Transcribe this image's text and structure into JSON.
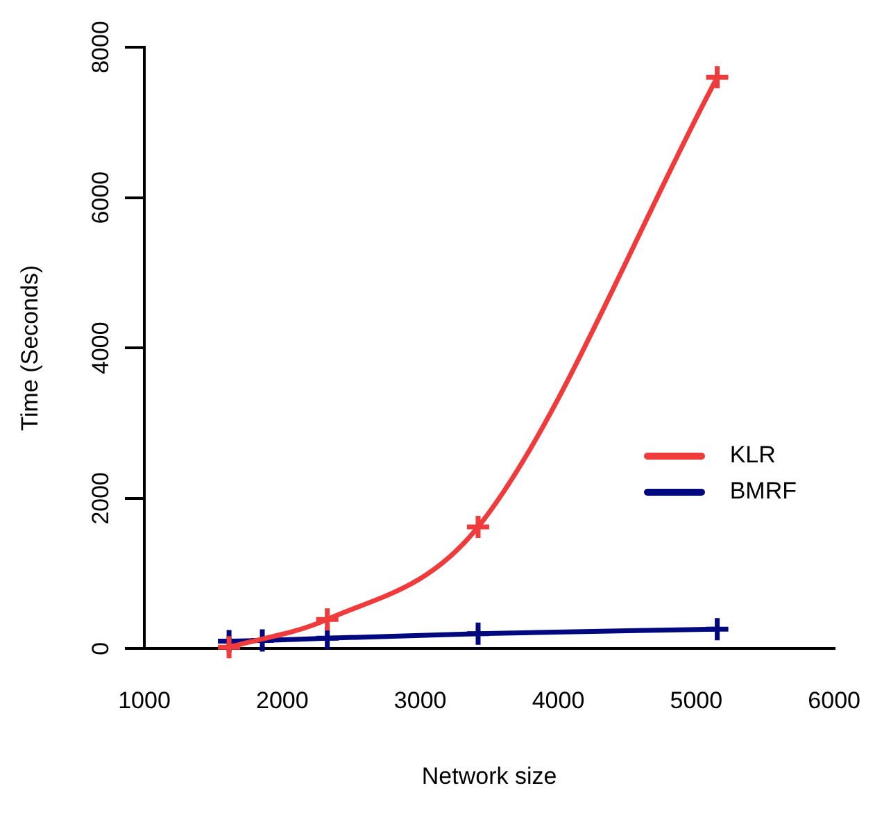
{
  "chart_data": {
    "type": "line",
    "xlabel": "Network size",
    "ylabel": "Time (Seconds)",
    "xlim": [
      1000,
      6000
    ],
    "xticks": [
      1000,
      2000,
      3000,
      4000,
      5000,
      6000
    ],
    "ylim": [
      0,
      8000
    ],
    "yticks": [
      0,
      2000,
      4000,
      6000,
      8000
    ],
    "grid": false,
    "legend": "right",
    "marker": "cross",
    "line_style": "solid",
    "series": [
      {
        "name": "KLR",
        "color": "#ef3b3b",
        "x": [
          1614,
          2326,
          3419,
          5152
        ],
        "values": [
          20,
          390,
          1620,
          7600
        ]
      },
      {
        "name": "BMRF",
        "color": "#00087f",
        "x": [
          1614,
          1855,
          2326,
          3419,
          5152
        ],
        "values": [
          100,
          110,
          140,
          200,
          260
        ]
      }
    ]
  }
}
